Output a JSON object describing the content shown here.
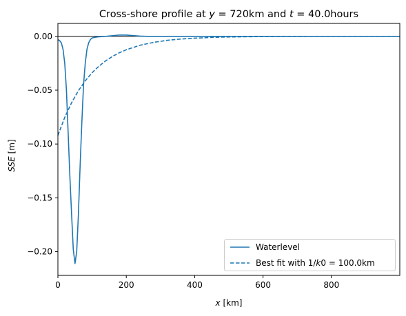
{
  "chart_data": {
    "type": "line",
    "title": "Cross-shore profile at y = 720km and t = 40.0hours",
    "xlabel": "x [km]",
    "ylabel": "SSE [m]",
    "xlim": [
      0,
      1000
    ],
    "ylim": [
      -0.222,
      0.012
    ],
    "xticks": [
      0,
      200,
      400,
      600,
      800
    ],
    "xtick_labels": [
      "0",
      "200",
      "400",
      "600",
      "800"
    ],
    "yticks": [
      0.0,
      -0.05,
      -0.1,
      -0.15,
      -0.2
    ],
    "ytick_labels": [
      "0.00",
      "−0.05",
      "−0.10",
      "−0.15",
      "−0.20"
    ],
    "grid": false,
    "zero_line": true,
    "legend_placement": "lower-right",
    "series": [
      {
        "name": "Waterlevel",
        "style": "solid",
        "color": "#1f77b4",
        "x": [
          0,
          5,
          10,
          15,
          20,
          25,
          30,
          35,
          40,
          45,
          50,
          55,
          60,
          65,
          70,
          75,
          80,
          85,
          90,
          95,
          100,
          110,
          120,
          140,
          160,
          180,
          200,
          220,
          240,
          260,
          300,
          400,
          600,
          800,
          1000
        ],
        "y": [
          -0.003,
          -0.004,
          -0.006,
          -0.012,
          -0.025,
          -0.05,
          -0.09,
          -0.13,
          -0.165,
          -0.198,
          -0.211,
          -0.2,
          -0.165,
          -0.12,
          -0.08,
          -0.045,
          -0.025,
          -0.012,
          -0.006,
          -0.003,
          -0.0015,
          -0.0008,
          -0.0004,
          0.0,
          0.0006,
          0.0012,
          0.0012,
          0.0007,
          0.0002,
          0.0,
          0.0,
          0.0,
          0.0,
          0.0,
          0.0
        ]
      },
      {
        "name": "Best fit with 1/k0 = 100.0km",
        "style": "dashed",
        "color": "#1f77b4",
        "x": [
          0,
          20,
          40,
          60,
          80,
          100,
          120,
          140,
          160,
          180,
          200,
          240,
          280,
          320,
          360,
          400,
          450,
          500,
          600,
          700,
          800,
          900,
          1000
        ],
        "y": [
          -0.092,
          -0.0753,
          -0.0617,
          -0.0505,
          -0.0413,
          -0.0338,
          -0.0277,
          -0.0227,
          -0.0186,
          -0.0152,
          -0.0125,
          -0.0083,
          -0.0056,
          -0.0037,
          -0.0025,
          -0.0017,
          -0.001,
          -0.0006,
          -0.0002,
          -0.0001,
          0.0,
          0.0,
          0.0
        ]
      }
    ]
  }
}
